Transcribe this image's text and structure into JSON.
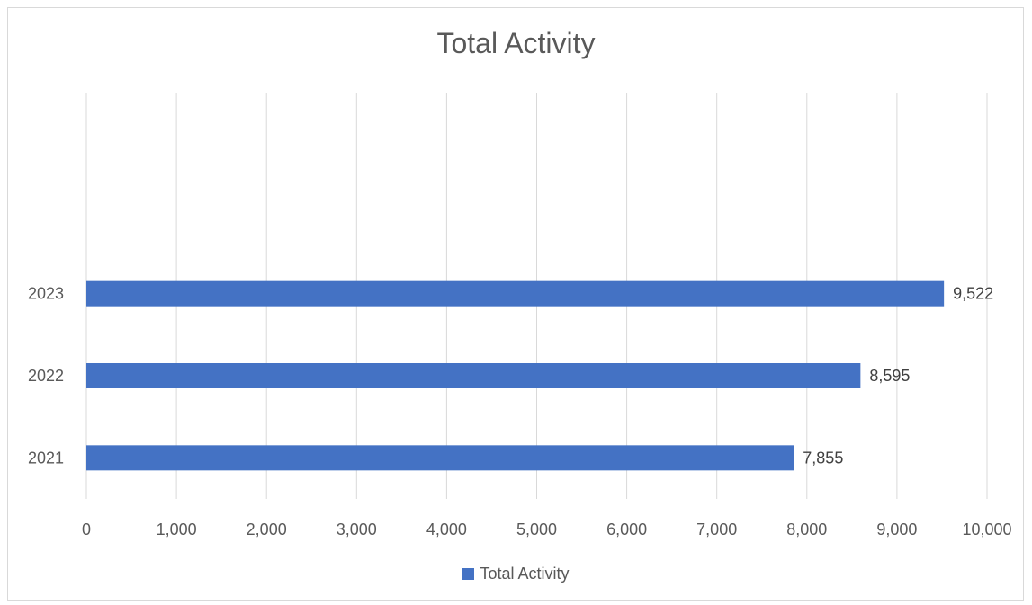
{
  "chart_data": {
    "type": "bar",
    "orientation": "horizontal",
    "title": "Total Activity",
    "categories": [
      "2021",
      "2022",
      "2023"
    ],
    "series": [
      {
        "name": "Total Activity",
        "values": [
          7855,
          8595,
          9522
        ],
        "color": "#4472c4"
      }
    ],
    "data_labels": [
      "7,855",
      "8,595",
      "9,522"
    ],
    "x_ticks": [
      "0",
      "1,000",
      "2,000",
      "3,000",
      "4,000",
      "5,000",
      "6,000",
      "7,000",
      "8,000",
      "9,000",
      "10,000"
    ],
    "xlim": [
      0,
      10000
    ],
    "xlabel": "",
    "ylabel": "",
    "grid": "vertical",
    "legend": "bottom"
  }
}
